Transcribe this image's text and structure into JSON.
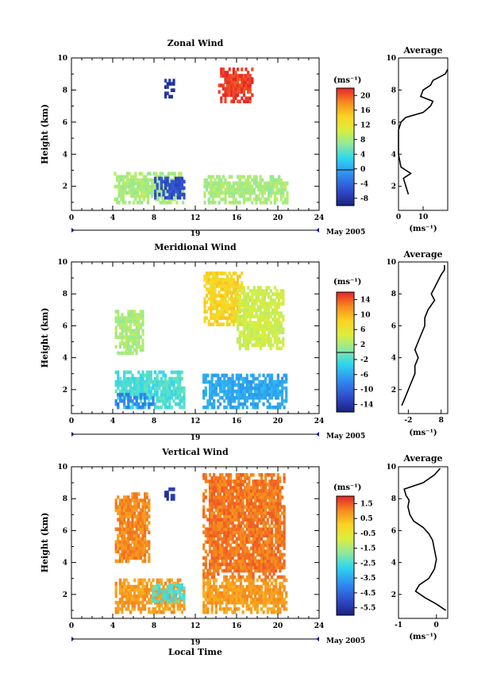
{
  "date_label": "May 2005",
  "day_label": "19",
  "xlabel": "Local Time",
  "unit_label": "(ms⁻¹)",
  "panels": [
    {
      "title": "Zonal Wind",
      "cbar_ticks": [
        "20",
        "16",
        "12",
        "8",
        "4",
        "0",
        "-4",
        "-8"
      ],
      "avg_title": "Average",
      "avg_xticks": [
        "0",
        "10"
      ],
      "avg_xlabel": "(ms⁻¹)"
    },
    {
      "title": "Meridional Wind",
      "cbar_ticks": [
        "14",
        "10",
        "6",
        "2",
        "-2",
        "-6",
        "-10",
        "-14"
      ],
      "avg_title": "Average",
      "avg_xticks": [
        "-2",
        "8"
      ],
      "avg_xlabel": "(ms⁻¹)"
    },
    {
      "title": "Vertical Wind",
      "cbar_ticks": [
        "1.5",
        "0.5",
        "-0.5",
        "-1.5",
        "-2.5",
        "-3.5",
        "-4.5",
        "-5.5"
      ],
      "avg_title": "Average",
      "avg_xticks": [
        "-1",
        "0"
      ],
      "avg_xlabel": "(ms⁻¹)"
    }
  ],
  "chart_data": [
    {
      "type": "heatmap",
      "title": "Zonal Wind",
      "xlabel": "Local Time",
      "ylabel": "Height (km)",
      "xlim": [
        0,
        24
      ],
      "ylim": [
        0.5,
        10
      ],
      "xticks": [
        0,
        4,
        8,
        12,
        16,
        20,
        24
      ],
      "yticks": [
        2,
        4,
        6,
        8,
        10
      ],
      "colorbar": {
        "unit": "(ms⁻¹)",
        "range": [
          -10,
          22
        ],
        "ticks": [
          20,
          16,
          12,
          8,
          4,
          0,
          -4,
          -8
        ]
      },
      "regions": [
        {
          "t": [
            4.1,
            10.8
          ],
          "h": [
            0.9,
            2.9
          ],
          "value": 8
        },
        {
          "t": [
            8.0,
            10.8
          ],
          "h": [
            1.2,
            2.6
          ],
          "value": -6
        },
        {
          "t": [
            12.8,
            20.8
          ],
          "h": [
            0.9,
            2.7
          ],
          "value": 8
        },
        {
          "t": [
            14.2,
            17.5
          ],
          "h": [
            7.2,
            9.3
          ],
          "value": 21
        },
        {
          "t": [
            9.0,
            9.9
          ],
          "h": [
            7.5,
            8.6
          ],
          "value": -8
        }
      ],
      "average": {
        "title": "Average",
        "xlim": [
          0,
          20
        ],
        "xticks": [
          0,
          10
        ],
        "xlabel": "(ms⁻¹)",
        "x": [
          4,
          3,
          2,
          5,
          3,
          1,
          0,
          0,
          0,
          1,
          3,
          10,
          13,
          14,
          9,
          10,
          13,
          14,
          19,
          20
        ],
        "y": [
          1.5,
          2.0,
          2.5,
          2.8,
          3.0,
          3.2,
          4.0,
          5.0,
          5.5,
          6.0,
          6.3,
          6.6,
          7.0,
          7.3,
          7.6,
          8.0,
          8.3,
          8.6,
          9.0,
          9.3
        ]
      }
    },
    {
      "type": "heatmap",
      "title": "Meridional Wind",
      "xlabel": "Local Time",
      "ylabel": "Height (km)",
      "xlim": [
        0,
        24
      ],
      "ylim": [
        0.5,
        10
      ],
      "xticks": [
        0,
        4,
        8,
        12,
        16,
        20,
        24
      ],
      "yticks": [
        2,
        4,
        6,
        8,
        10
      ],
      "colorbar": {
        "unit": "(ms⁻¹)",
        "range": [
          -16,
          16
        ],
        "ticks": [
          14,
          10,
          6,
          2,
          -2,
          -6,
          -10,
          -14
        ]
      },
      "regions": [
        {
          "t": [
            4.2,
            10.8
          ],
          "h": [
            0.8,
            3.1
          ],
          "value": -2
        },
        {
          "t": [
            4.2,
            8.0
          ],
          "h": [
            0.8,
            1.6
          ],
          "value": -8
        },
        {
          "t": [
            12.7,
            20.8
          ],
          "h": [
            0.8,
            3.0
          ],
          "value": -6
        },
        {
          "t": [
            4.2,
            7.0
          ],
          "h": [
            4.2,
            7.0
          ],
          "value": 2
        },
        {
          "t": [
            12.8,
            16.5
          ],
          "h": [
            6.0,
            9.3
          ],
          "value": 8
        },
        {
          "t": [
            16.0,
            20.5
          ],
          "h": [
            4.5,
            8.5
          ],
          "value": 4
        }
      ],
      "average": {
        "title": "Average",
        "xlim": [
          -5,
          10
        ],
        "xticks": [
          -2,
          8
        ],
        "xlabel": "(ms⁻¹)",
        "x": [
          -4,
          -3,
          -2,
          -1,
          0,
          0,
          1,
          0,
          1,
          2,
          3,
          3,
          4,
          5,
          6,
          5,
          6,
          7,
          8,
          9,
          9
        ],
        "y": [
          1.0,
          1.5,
          2.0,
          2.5,
          3.0,
          3.5,
          4.0,
          4.5,
          5.0,
          5.5,
          6.0,
          6.5,
          7.0,
          7.3,
          7.6,
          8.0,
          8.4,
          8.8,
          9.2,
          9.5,
          9.8
        ]
      }
    },
    {
      "type": "heatmap",
      "title": "Vertical Wind",
      "xlabel": "Local Time",
      "ylabel": "Height (km)",
      "xlim": [
        0,
        24
      ],
      "ylim": [
        0.5,
        10
      ],
      "xticks": [
        0,
        4,
        8,
        12,
        16,
        20,
        24
      ],
      "yticks": [
        2,
        4,
        6,
        8,
        10
      ],
      "colorbar": {
        "unit": "(ms⁻¹)",
        "range": [
          -6,
          2
        ],
        "ticks": [
          1.5,
          0.5,
          -0.5,
          -1.5,
          -2.5,
          -3.5,
          -4.5,
          -5.5
        ]
      },
      "regions": [
        {
          "t": [
            4.2,
            10.8
          ],
          "h": [
            0.8,
            3.0
          ],
          "value": 0.8
        },
        {
          "t": [
            7.8,
            10.8
          ],
          "h": [
            1.5,
            2.7
          ],
          "value": -2.5
        },
        {
          "t": [
            4.2,
            7.5
          ],
          "h": [
            4.0,
            8.3
          ],
          "value": 1.0
        },
        {
          "t": [
            12.7,
            20.8
          ],
          "h": [
            0.8,
            3.0
          ],
          "value": 0.8
        },
        {
          "t": [
            12.7,
            20.5
          ],
          "h": [
            3.0,
            9.5
          ],
          "value": 1.2
        },
        {
          "t": [
            9.0,
            9.9
          ],
          "h": [
            7.9,
            8.6
          ],
          "value": -5.5
        }
      ],
      "average": {
        "title": "Average",
        "xlim": [
          -1,
          0.3
        ],
        "xticks": [
          -1,
          0
        ],
        "xlabel": "(ms⁻¹)",
        "x": [
          0.25,
          0.0,
          -0.3,
          -0.55,
          -0.45,
          -0.2,
          -0.05,
          0.0,
          -0.05,
          -0.1,
          -0.2,
          -0.35,
          -0.6,
          -0.7,
          -0.75,
          -0.72,
          -0.8,
          -0.85,
          -0.35,
          -0.05,
          0.1
        ],
        "y": [
          1.0,
          1.4,
          1.8,
          2.2,
          2.6,
          3.0,
          3.6,
          4.2,
          4.8,
          5.4,
          5.8,
          6.2,
          6.6,
          7.0,
          7.5,
          7.9,
          8.2,
          8.6,
          9.0,
          9.5,
          9.9
        ]
      }
    }
  ]
}
